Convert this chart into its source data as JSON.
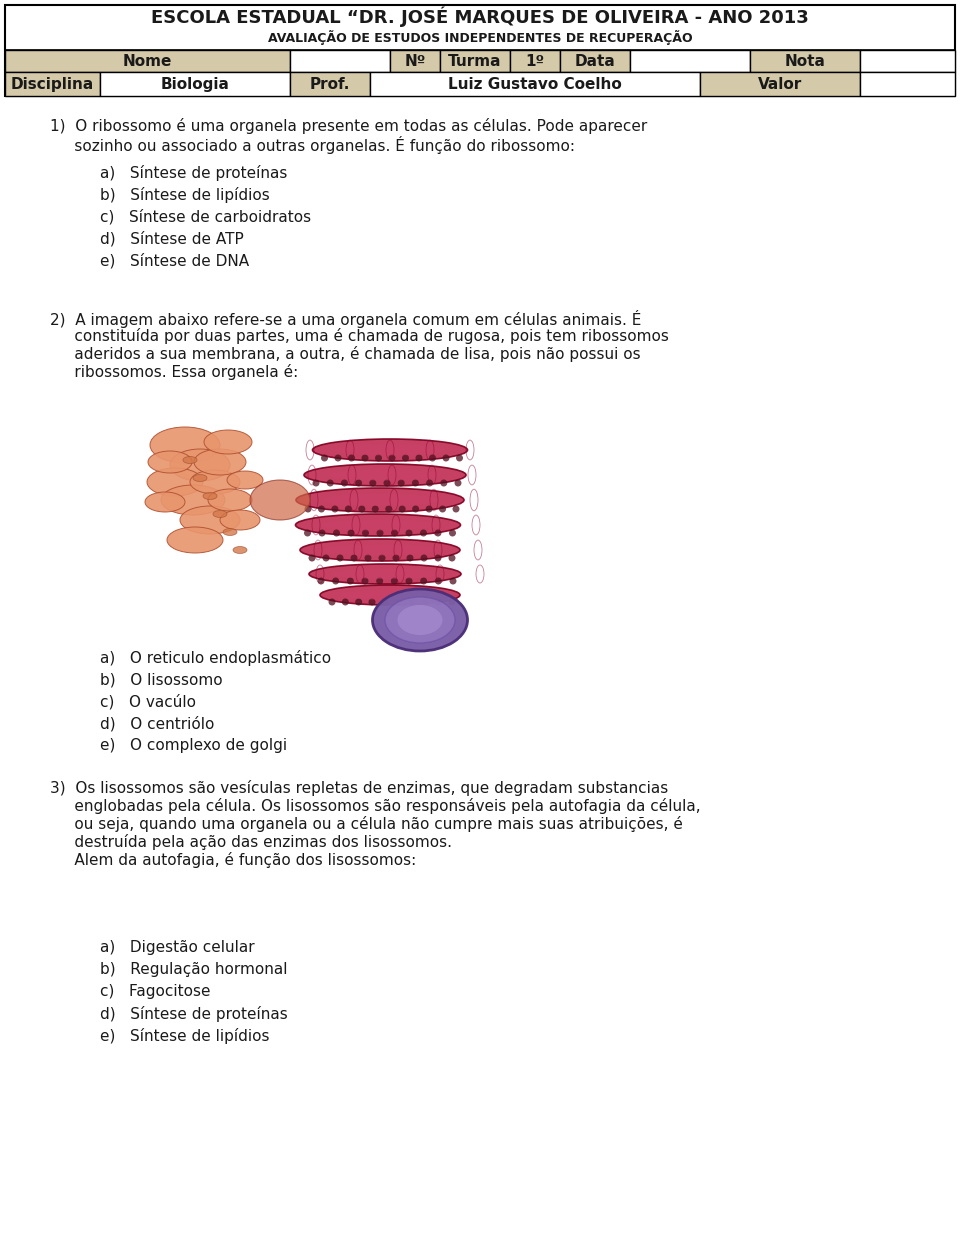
{
  "title_line1": "ESCOLA ESTADUAL “DR. JOSÉ MARQUES DE OLIVEIRA - ANO 2013",
  "title_line2": "AVALIAÇÃO DE ESTUDOS INDEPENDENTES DE RECUPERAÇÃO",
  "bg_color": "#ffffff",
  "header_bg": "#d4c9a8",
  "border_color": "#000000",
  "text_color": "#1a1a1a",
  "col_boundaries_r1": [
    5,
    290,
    390,
    440,
    510,
    560,
    630,
    750,
    860,
    955
  ],
  "col_labels_r1": [
    "Nome",
    "",
    "Nº",
    "Turma",
    "1º",
    "Data",
    "",
    "Nota",
    ""
  ],
  "col_filled_r1": [
    true,
    false,
    true,
    true,
    true,
    true,
    false,
    true,
    false
  ],
  "col_boundaries_r2": [
    5,
    100,
    290,
    370,
    700,
    860,
    955
  ],
  "col_labels_r2": [
    "Disciplina",
    "Biologia",
    "Prof.",
    "Luiz Gustavo Coelho",
    "Valor",
    ""
  ],
  "col_filled_r2": [
    true,
    false,
    true,
    false,
    true,
    false
  ],
  "q1_line1": "1)  O ribossomo é uma organela presente em todas as células. Pode aparecer",
  "q1_line2": "     sozinho ou associado a outras organelas. É função do ribossomo:",
  "question1_options": [
    "a)   Síntese de proteínas",
    "b)   Síntese de lipídios",
    "c)   Síntese de carboidratos",
    "d)   Síntese de ATP",
    "e)   Síntese de DNA"
  ],
  "q2_line1": "2)  A imagem abaixo refere-se a uma organela comum em células animais. É",
  "q2_line2": "     constituída por duas partes, uma é chamada de rugosa, pois tem ribossomos",
  "q2_line3": "     aderidos a sua membrana, a outra, é chamada de lisa, pois não possui os",
  "q2_line4": "     ribossomos. Essa organela é:",
  "question2_options": [
    "a)   O reticulo endoplasmático",
    "b)   O lisossomo",
    "c)   O vacúlo",
    "d)   O centriólo",
    "e)   O complexo de golgi"
  ],
  "q3_line1": "3)  Os lisossomos são vesículas repletas de enzimas, que degradam substancias",
  "q3_line2": "     englobadas pela célula. Os lisossomos são responsáveis pela autofagia da célula,",
  "q3_line3": "     ou seja, quando uma organela ou a célula não cumpre mais suas atribuições, é",
  "q3_line4": "     destruída pela ação das enzimas dos lisossomos.",
  "q3_line5": "     Alem da autofagia, é função dos lisossomos:",
  "question3_options": [
    "a)   Digestão celular",
    "b)   Regulação hormonal",
    "c)   Fagocitose",
    "d)   Síntese de proteínas",
    "e)   Síntese de lipídios"
  ]
}
